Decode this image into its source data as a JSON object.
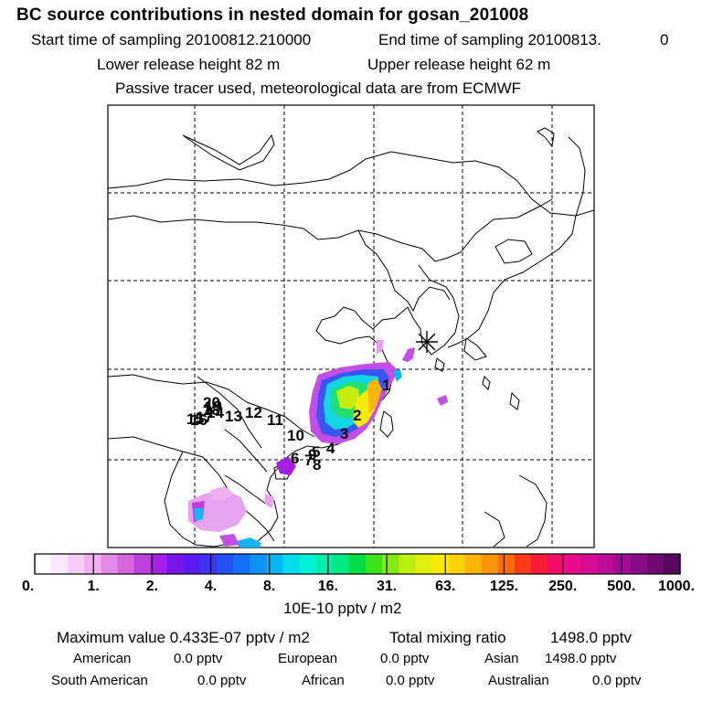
{
  "header": {
    "title": "BC  source contributions in nested domain for gosan_201008",
    "start_label": "Start time of sampling 20100812.210000",
    "end_label": "End time of sampling 20100813.",
    "end_value": "0",
    "lower_label": "Lower release height   82 m",
    "upper_label": "Upper release height   62 m",
    "passive_label": "Passive tracer used, meteorological data are from ECMWF"
  },
  "map": {
    "receptor_marker": "asterisk-icon",
    "trajectory_labels": [
      {
        "id": "label-1",
        "text": "1"
      },
      {
        "id": "label-2",
        "text": "2"
      },
      {
        "id": "label-3",
        "text": "3"
      },
      {
        "id": "label-4",
        "text": "4"
      },
      {
        "id": "label-5",
        "text": "5"
      },
      {
        "id": "label-6",
        "text": "6"
      },
      {
        "id": "label-7",
        "text": "7"
      },
      {
        "id": "label-8",
        "text": "8"
      },
      {
        "id": "label-9",
        "text": "9"
      },
      {
        "id": "label-10",
        "text": "10"
      },
      {
        "id": "label-11",
        "text": "11"
      },
      {
        "id": "label-12",
        "text": "12"
      },
      {
        "id": "label-13",
        "text": "13"
      },
      {
        "id": "label-14",
        "text": "14"
      },
      {
        "id": "label-15",
        "text": "15"
      },
      {
        "id": "label-16",
        "text": "16"
      },
      {
        "id": "label-17",
        "text": "17"
      },
      {
        "id": "label-18",
        "text": "18"
      },
      {
        "id": "label-19",
        "text": "19"
      },
      {
        "id": "label-20",
        "text": "20"
      }
    ]
  },
  "colorbar": {
    "tick_labels": [
      "0.",
      "1.",
      "2.",
      "4.",
      "8.",
      "16.",
      "31.",
      "63.",
      "125.",
      "250.",
      "500.",
      "1000."
    ],
    "colors": [
      "#ffffff",
      "#fbe6fb",
      "#f6cdf6",
      "#efb0f0",
      "#e48ae6",
      "#d864e0",
      "#c03ee0",
      "#a41ee6",
      "#7a14e8",
      "#5a1cee",
      "#3d33f2",
      "#2252f6",
      "#1470f5",
      "#0d92f3",
      "#06b6f0",
      "#00dcec",
      "#00f2d4",
      "#00eeaa",
      "#00e680",
      "#00dd44",
      "#3ee21a",
      "#86ea12",
      "#bcee0e",
      "#e0f00c",
      "#f6ea0a",
      "#fcd20a",
      "#fcb40a",
      "#fc940a",
      "#fc6a0e",
      "#fc3c18",
      "#f81c3a",
      "#f40c66",
      "#e80c88",
      "#d60c96",
      "#bc0c98",
      "#a00c96",
      "#880c88",
      "#6e0c74",
      "#56085e"
    ],
    "units": "10E-10 pptv / m2"
  },
  "stats": {
    "max_label": "Maximum value  0.433E-07 pptv / m2",
    "total_label": "Total mixing ratio",
    "total_value": "1498.0 pptv",
    "rows": [
      {
        "name": "American",
        "value": "0.0 pptv"
      },
      {
        "name": "European",
        "value": "0.0 pptv"
      },
      {
        "name": "Asian",
        "value": "1498.0 pptv"
      },
      {
        "name": "South American",
        "value": "0.0 pptv"
      },
      {
        "name": "African",
        "value": "0.0 pptv"
      },
      {
        "name": "Australian",
        "value": "0.0 pptv"
      }
    ]
  }
}
